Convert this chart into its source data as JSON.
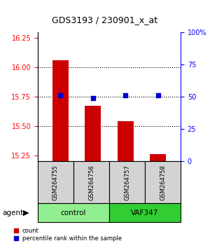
{
  "title": "GDS3193 / 230901_x_at",
  "samples": [
    "GSM264755",
    "GSM264756",
    "GSM264757",
    "GSM264758"
  ],
  "groups": [
    "control",
    "control",
    "VAF347",
    "VAF347"
  ],
  "group_colors": {
    "control": "#90EE90",
    "VAF347": "#00CC00"
  },
  "bar_values": [
    16.06,
    15.67,
    15.54,
    15.26
  ],
  "percentile_values": [
    51,
    49,
    51,
    51
  ],
  "ylim_left": [
    15.2,
    16.3
  ],
  "ylim_right": [
    0,
    100
  ],
  "yticks_left": [
    15.25,
    15.5,
    15.75,
    16.0,
    16.25
  ],
  "yticks_right": [
    0,
    25,
    50,
    75,
    100
  ],
  "bar_color": "#CC0000",
  "percentile_color": "#0000CC",
  "bar_bottom": 15.2,
  "grid_values": [
    15.5,
    15.75,
    16.0
  ],
  "bg_color": "#ffffff"
}
